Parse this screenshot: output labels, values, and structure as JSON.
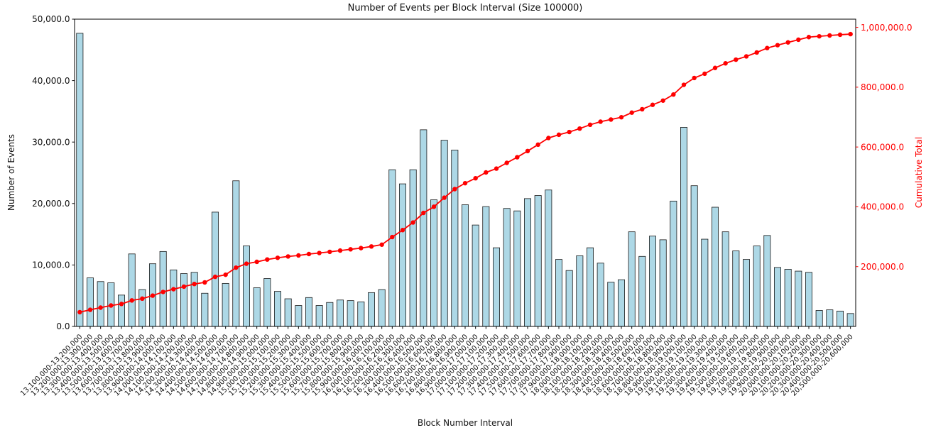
{
  "chart_data": {
    "type": "bar",
    "title": "Number of Events per Block Interval (Size 100000)",
    "xlabel": "Block Number Interval",
    "grid": false,
    "legend": "none",
    "left_axis": {
      "label": "Number of Events",
      "lim": [
        0,
        50000
      ],
      "tick_values": [
        0,
        10000,
        20000,
        30000,
        40000,
        50000
      ],
      "tick_labels": [
        "0.0",
        "10,000.0",
        "20,000.0",
        "30,000.0",
        "40,000.0",
        "50,000.0"
      ],
      "color": "#000000"
    },
    "right_axis": {
      "label": "Cumulative Total",
      "lim": [
        0,
        1027500
      ],
      "tick_values": [
        200000,
        400000,
        600000,
        800000,
        1000000
      ],
      "tick_labels": [
        "200,000.0",
        "400,000.0",
        "600,000.0",
        "800,000.0",
        "1,000,000.0"
      ],
      "color": "#ff0000"
    },
    "categories": [
      "13,100,000-13,200,000",
      "13,200,000-13,300,000",
      "13,300,000-13,400,000",
      "13,400,000-13,500,000",
      "13,500,000-13,600,000",
      "13,600,000-13,700,000",
      "13,700,000-13,800,000",
      "13,800,000-13,900,000",
      "13,900,000-14,000,000",
      "14,000,000-14,100,000",
      "14,100,000-14,200,000",
      "14,200,000-14,300,000",
      "14,300,000-14,400,000",
      "14,400,000-14,500,000",
      "14,500,000-14,600,000",
      "14,600,000-14,700,000",
      "14,700,000-14,800,000",
      "14,800,000-14,900,000",
      "14,900,000-15,000,000",
      "15,000,000-15,100,000",
      "15,100,000-15,200,000",
      "15,200,000-15,300,000",
      "15,300,000-15,400,000",
      "15,400,000-15,500,000",
      "15,500,000-15,600,000",
      "15,600,000-15,700,000",
      "15,700,000-15,800,000",
      "15,800,000-15,900,000",
      "15,900,000-16,000,000",
      "16,000,000-16,100,000",
      "16,100,000-16,200,000",
      "16,200,000-16,300,000",
      "16,300,000-16,400,000",
      "16,400,000-16,500,000",
      "16,500,000-16,600,000",
      "16,600,000-16,700,000",
      "16,700,000-16,800,000",
      "16,800,000-16,900,000",
      "16,900,000-17,000,000",
      "17,000,000-17,100,000",
      "17,100,000-17,200,000",
      "17,200,000-17,300,000",
      "17,300,000-17,400,000",
      "17,400,000-17,500,000",
      "17,500,000-17,600,000",
      "17,600,000-17,700,000",
      "17,700,000-17,800,000",
      "17,800,000-17,900,000",
      "17,900,000-18,000,000",
      "18,000,000-18,100,000",
      "18,100,000-18,200,000",
      "18,200,000-18,300,000",
      "18,300,000-18,400,000",
      "18,400,000-18,500,000",
      "18,500,000-18,600,000",
      "18,600,000-18,700,000",
      "18,700,000-18,800,000",
      "18,800,000-18,900,000",
      "18,900,000-19,000,000",
      "19,000,000-19,100,000",
      "19,100,000-19,200,000",
      "19,200,000-19,300,000",
      "19,300,000-19,400,000",
      "19,400,000-19,500,000",
      "19,500,000-19,600,000",
      "19,600,000-19,700,000",
      "19,700,000-19,800,000",
      "19,800,000-19,900,000",
      "19,900,000-20,000,000",
      "20,000,000-20,100,000",
      "20,100,000-20,200,000",
      "20,200,000-20,300,000",
      "20,300,000-20,400,000",
      "20,400,000-20,500,000",
      "20,500,000-20,600,000"
    ],
    "series": [
      {
        "name": "events_per_interval",
        "type": "bar",
        "fill": "#add8e6",
        "edge": "#1a1a1a",
        "values": [
          47700,
          7900,
          7300,
          7100,
          5100,
          11800,
          6000,
          10200,
          12200,
          9200,
          8600,
          8800,
          5400,
          18600,
          7000,
          23700,
          13100,
          6300,
          7800,
          5700,
          4500,
          3400,
          4700,
          3400,
          3900,
          4300,
          4200,
          4000,
          5500,
          6000,
          25500,
          23200,
          25500,
          32000,
          20600,
          30300,
          28700,
          19800,
          16500,
          19500,
          12800,
          19200,
          18800,
          20800,
          21300,
          22200,
          10900,
          9100,
          11500,
          12800,
          10300,
          7200,
          7600,
          15400,
          11400,
          14700,
          14100,
          20400,
          32400,
          22900,
          14200,
          19400,
          15400,
          12300,
          10900,
          13100,
          14800,
          9600,
          9300,
          9000,
          8800,
          2600,
          2700,
          2500,
          2100
        ]
      },
      {
        "name": "cumulative_total",
        "type": "line",
        "color": "#ff0000",
        "marker": "circle",
        "values": [
          47700,
          55600,
          62900,
          70000,
          75100,
          86900,
          92900,
          103100,
          115300,
          124500,
          133100,
          141900,
          147300,
          165900,
          172900,
          196600,
          209700,
          216000,
          223800,
          229500,
          234000,
          237400,
          242100,
          245500,
          249400,
          253700,
          257900,
          261900,
          267400,
          273400,
          298900,
          322100,
          347600,
          379600,
          400200,
          430500,
          459200,
          479000,
          495500,
          515000,
          527800,
          547000,
          565800,
          586600,
          607900,
          630100,
          641000,
          650100,
          661600,
          674400,
          684700,
          691900,
          699500,
          714900,
          726300,
          741000,
          755100,
          775500,
          807900,
          830800,
          845000,
          864400,
          879800,
          892100,
          903000,
          916100,
          930900,
          940500,
          949800,
          958800,
          967600,
          970200,
          972900,
          975400,
          977500
        ]
      }
    ]
  }
}
